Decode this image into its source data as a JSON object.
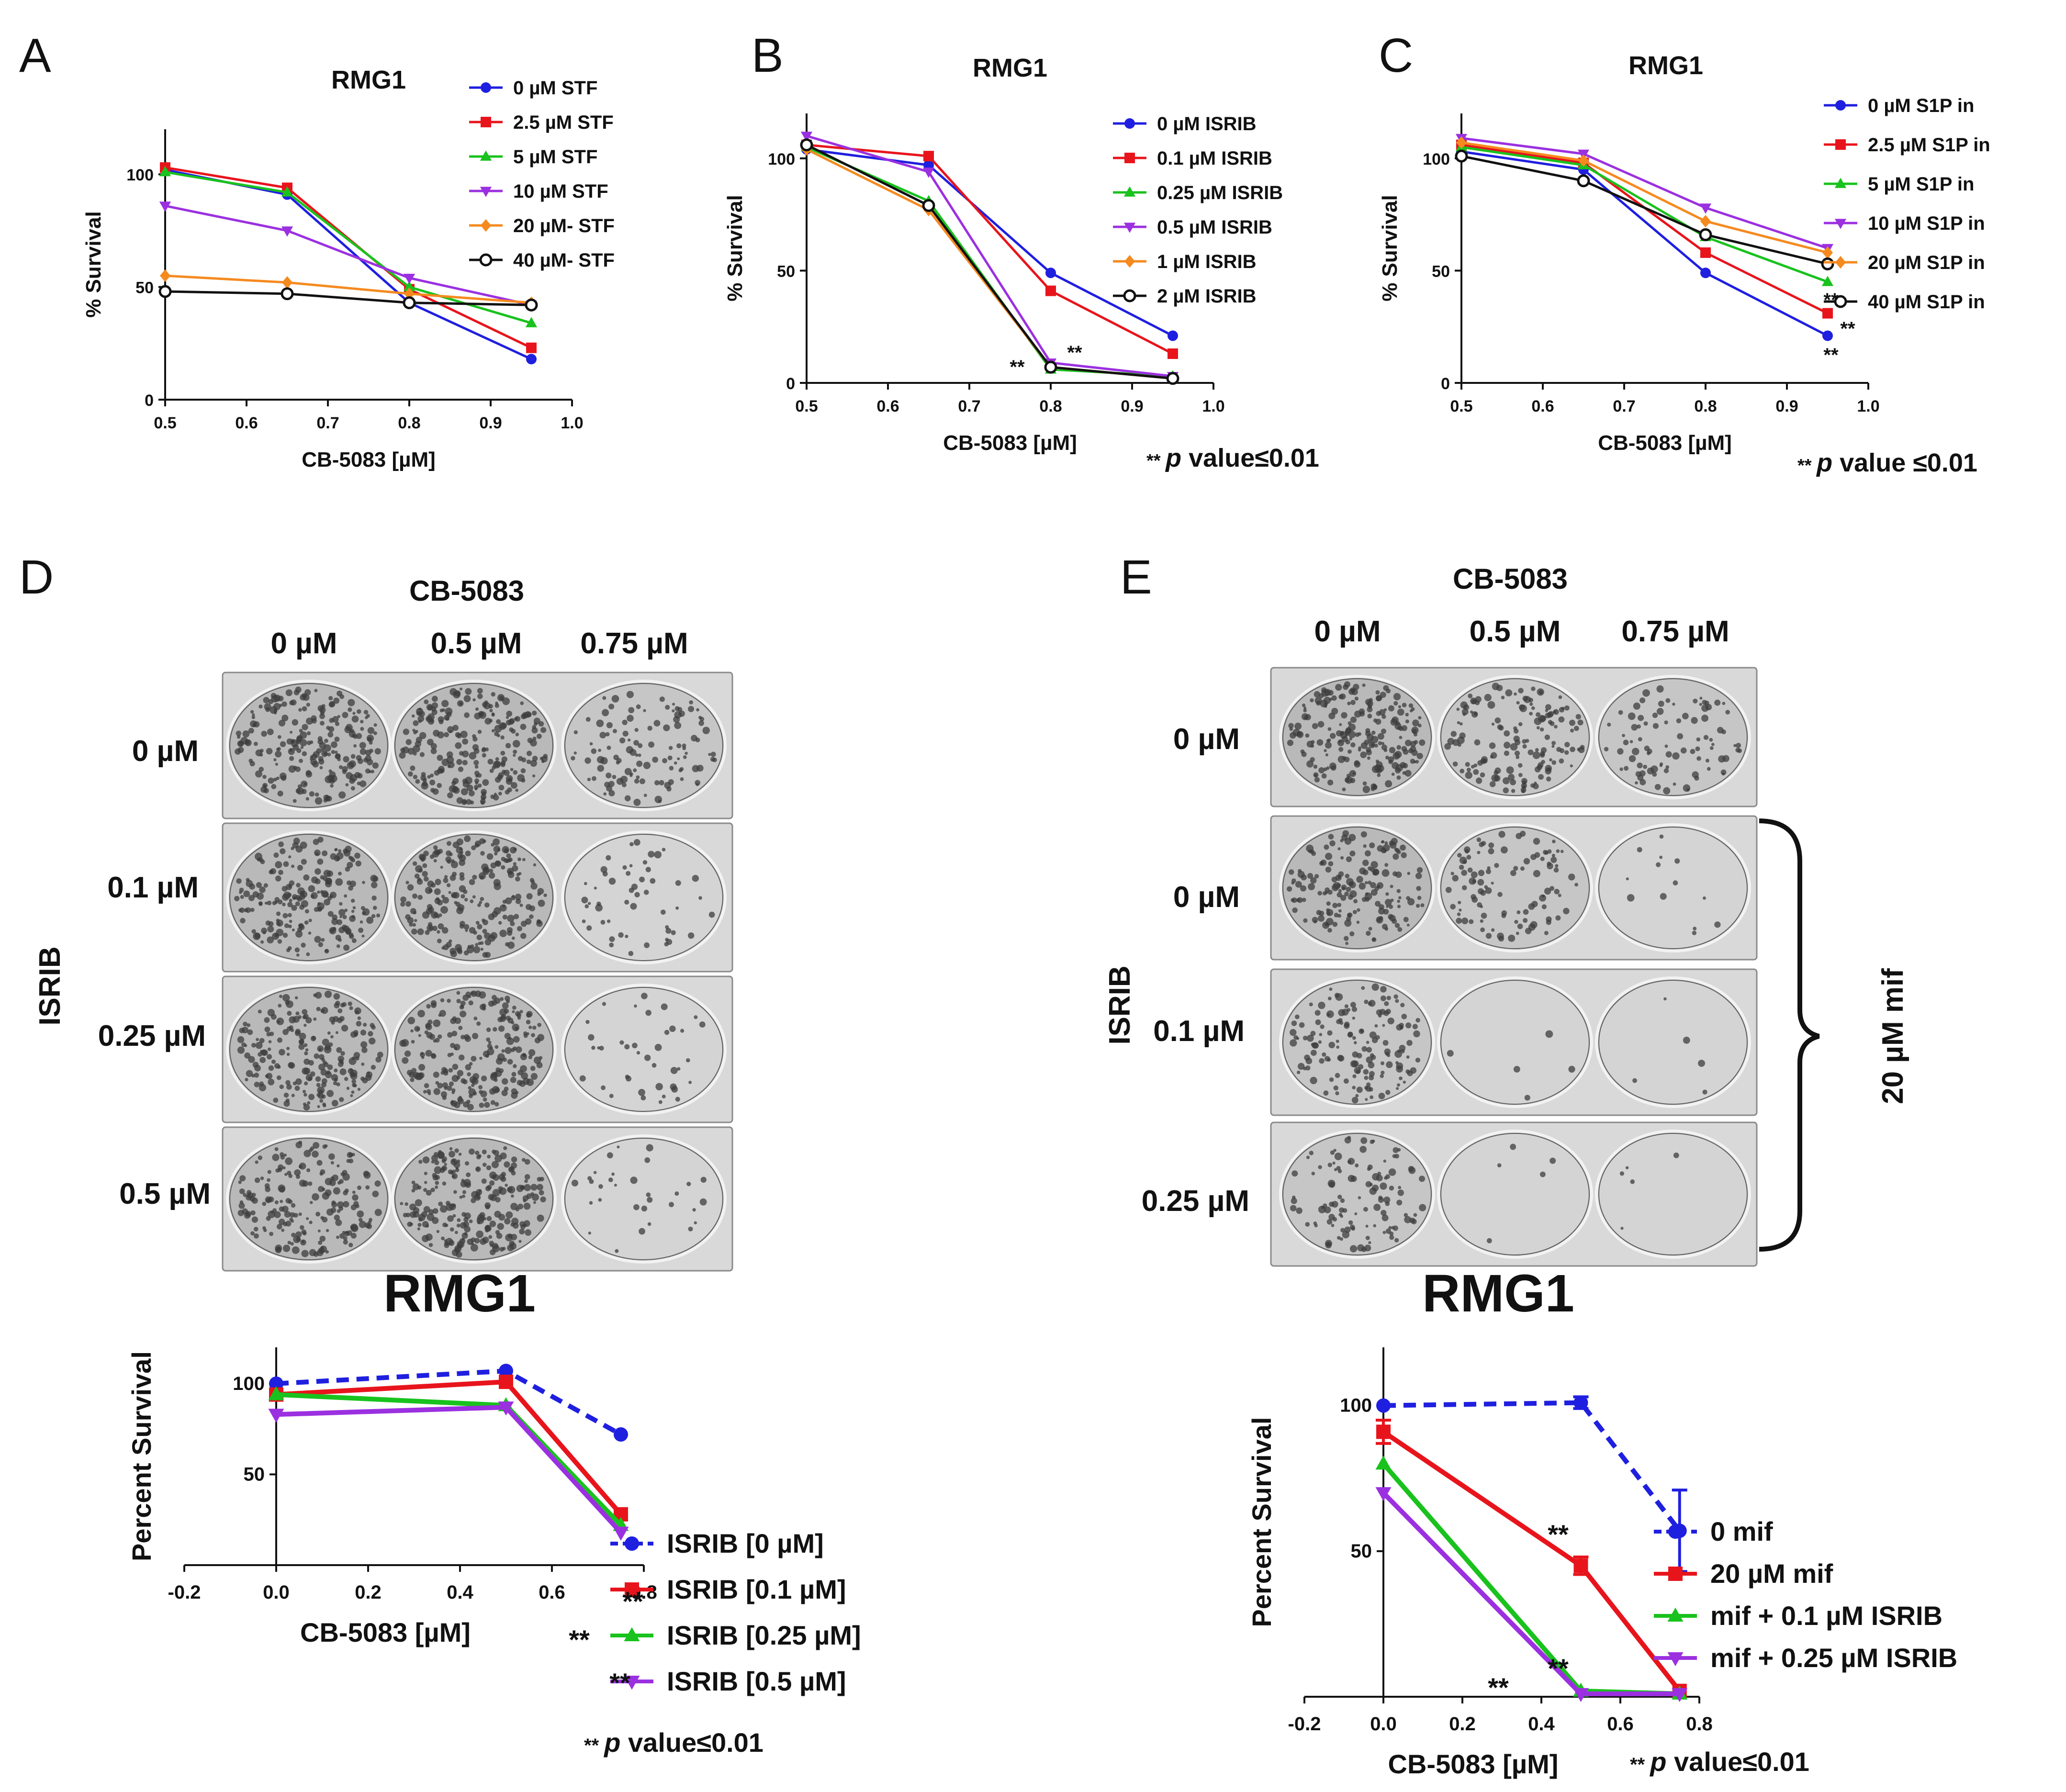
{
  "chart_data": [
    {
      "panel": "A",
      "type": "line",
      "title": "RMG1",
      "xlabel": "CB-5083 [µM]",
      "ylabel": "% Survival",
      "xlim": [
        0.5,
        1.0
      ],
      "ylim": [
        0,
        120
      ],
      "xticks": [
        0.5,
        0.6,
        0.7,
        0.8,
        0.9,
        1.0
      ],
      "xtick_labels": [
        "0.5",
        "0.6",
        "0.7",
        "0.8",
        "0.9",
        "1.0"
      ],
      "yticks": [
        0,
        50,
        100
      ],
      "ytick_labels": [
        "0",
        "50",
        "100"
      ],
      "legend_position": "right",
      "x": [
        0.5,
        0.65,
        0.8,
        0.95
      ],
      "series": [
        {
          "name": "0 µM STF",
          "color": "#1f1fe0",
          "marker": "circle",
          "values": [
            102,
            91,
            43,
            18
          ]
        },
        {
          "name": "2.5 µM STF",
          "color": "#e8141c",
          "marker": "square",
          "values": [
            103,
            94,
            49,
            23
          ]
        },
        {
          "name": "5 µM STF",
          "color": "#19c21d",
          "marker": "triangle",
          "values": [
            101,
            92,
            50,
            34
          ]
        },
        {
          "name": "10 µM STF",
          "color": "#9b30e0",
          "marker": "triangle-down",
          "values": [
            86,
            75,
            54,
            42
          ]
        },
        {
          "name": "20 µM- STF",
          "color": "#f58a1f",
          "marker": "diamond",
          "values": [
            55,
            52,
            47,
            43
          ]
        },
        {
          "name": "40 µM- STF",
          "color": "#111111",
          "marker": "open-circle",
          "values": [
            48,
            47,
            43,
            42
          ]
        }
      ]
    },
    {
      "panel": "B",
      "type": "line",
      "title": "RMG1",
      "xlabel": "CB-5083 [µM]",
      "ylabel": "% Survival",
      "xlim": [
        0.5,
        1.0
      ],
      "ylim": [
        0,
        120
      ],
      "xticks": [
        0.5,
        0.6,
        0.7,
        0.8,
        0.9,
        1.0
      ],
      "xtick_labels": [
        "0.5",
        "0.6",
        "0.7",
        "0.8",
        "0.9",
        "1.0"
      ],
      "yticks": [
        0,
        50,
        100
      ],
      "ytick_labels": [
        "0",
        "50",
        "100"
      ],
      "legend_position": "right",
      "annotation": "** p value≤0.01",
      "annotation_p": "p",
      "annotation_rest": " value≤0.01",
      "stars": [
        "**",
        "**"
      ],
      "x": [
        0.5,
        0.65,
        0.8,
        0.95
      ],
      "series": [
        {
          "name": "0 µM ISRIB",
          "color": "#1f1fe0",
          "marker": "circle",
          "values": [
            104,
            97,
            49,
            21
          ]
        },
        {
          "name": "0.1 µM ISRIB",
          "color": "#e8141c",
          "marker": "square",
          "values": [
            106,
            101,
            41,
            13
          ]
        },
        {
          "name": "0.25 µM ISRIB",
          "color": "#19c21d",
          "marker": "triangle",
          "values": [
            105,
            81,
            6,
            3
          ]
        },
        {
          "name": "0.5 µM ISRIB",
          "color": "#9b30e0",
          "marker": "triangle-down",
          "values": [
            110,
            94,
            9,
            3
          ]
        },
        {
          "name": "1 µM ISRIB",
          "color": "#f58a1f",
          "marker": "diamond",
          "values": [
            104,
            77,
            7,
            2
          ]
        },
        {
          "name": "2 µM ISRIB",
          "color": "#111111",
          "marker": "open-circle",
          "values": [
            106,
            79,
            7,
            2
          ]
        }
      ]
    },
    {
      "panel": "C",
      "type": "line",
      "title": "RMG1",
      "xlabel": "CB-5083 [µM]",
      "ylabel": "% Survival",
      "xlim": [
        0.5,
        1.0
      ],
      "ylim": [
        0,
        120
      ],
      "xticks": [
        0.5,
        0.6,
        0.7,
        0.8,
        0.9,
        1.0
      ],
      "xtick_labels": [
        "0.5",
        "0.6",
        "0.7",
        "0.8",
        "0.9",
        "1.0"
      ],
      "yticks": [
        0,
        50,
        100
      ],
      "ytick_labels": [
        "0",
        "50",
        "100"
      ],
      "legend_position": "right",
      "annotation": "** p value ≤0.01",
      "annotation_p": "p",
      "annotation_rest": " value ≤0.01",
      "stars": [
        "**",
        "**",
        "**"
      ],
      "x": [
        0.5,
        0.65,
        0.8,
        0.95
      ],
      "series": [
        {
          "name": "0 µM S1P in",
          "color": "#1f1fe0",
          "marker": "circle",
          "values": [
            103,
            95,
            49,
            21
          ]
        },
        {
          "name": "2.5 µM S1P in",
          "color": "#e8141c",
          "marker": "square",
          "values": [
            106,
            98,
            58,
            31
          ]
        },
        {
          "name": "5 µM S1P in",
          "color": "#19c21d",
          "marker": "triangle",
          "values": [
            105,
            97,
            65,
            45
          ]
        },
        {
          "name": "10 µM S1P in",
          "color": "#9b30e0",
          "marker": "triangle-down",
          "values": [
            109,
            102,
            78,
            60
          ]
        },
        {
          "name": "20 µM S1P in",
          "color": "#f58a1f",
          "marker": "diamond",
          "values": [
            107,
            99,
            72,
            58
          ]
        },
        {
          "name": "40 µM S1P in",
          "color": "#111111",
          "marker": "open-circle",
          "values": [
            101,
            90,
            66,
            53
          ]
        }
      ]
    },
    {
      "panel": "D",
      "type": "line",
      "title": "RMG1",
      "xlabel": "CB-5083 [µM]",
      "ylabel": "Percent Survival",
      "xlim": [
        -0.2,
        0.8
      ],
      "ylim": [
        0,
        120
      ],
      "xticks": [
        -0.2,
        0.0,
        0.2,
        0.4,
        0.6,
        0.8
      ],
      "xtick_labels": [
        "-0.2",
        "0.0",
        "0.2",
        "0.4",
        "0.6",
        "0.8"
      ],
      "yticks": [
        50,
        100
      ],
      "ytick_labels": [
        "50",
        "100"
      ],
      "legend_position": "right",
      "annotation": "** p value≤0.01",
      "annotation_p": "p",
      "annotation_rest": " value≤0.01",
      "stars": [
        "**",
        "**",
        "**"
      ],
      "x": [
        0,
        0.5,
        0.75
      ],
      "series": [
        {
          "name": "ISRIB [0 µM]",
          "color": "#1f1fe0",
          "marker": "circle",
          "dashed": true,
          "values": [
            100,
            107,
            72
          ]
        },
        {
          "name": "ISRIB [0.1 µM]",
          "color": "#e8141c",
          "marker": "square",
          "values": [
            94,
            101,
            28
          ]
        },
        {
          "name": "ISRIB [0.25 µM]",
          "color": "#19c21d",
          "marker": "triangle",
          "values": [
            94,
            88,
            22
          ]
        },
        {
          "name": "ISRIB [0.5 µM]",
          "color": "#9b30e0",
          "marker": "triangle-down",
          "values": [
            83,
            87,
            18
          ]
        }
      ]
    },
    {
      "panel": "E",
      "type": "line",
      "title": "RMG1",
      "xlabel": "CB-5083 [µM]",
      "ylabel": "Percent Survival",
      "xlim": [
        -0.2,
        0.8
      ],
      "ylim": [
        0,
        120
      ],
      "xticks": [
        -0.2,
        0.0,
        0.2,
        0.4,
        0.6,
        0.8
      ],
      "xtick_labels": [
        "-0.2",
        "0.0",
        "0.2",
        "0.4",
        "0.6",
        "0.8"
      ],
      "yticks": [
        50,
        100
      ],
      "ytick_labels": [
        "50",
        "100"
      ],
      "legend_position": "right",
      "annotation": "** p value≤0.01",
      "annotation_p": "p",
      "annotation_rest": " value≤0.01",
      "stars": [
        "**",
        "**",
        "**"
      ],
      "x": [
        0,
        0.5,
        0.75
      ],
      "series": [
        {
          "name": "0 mif",
          "color": "#1f1fe0",
          "marker": "circle",
          "dashed": true,
          "values": [
            100,
            101,
            57
          ],
          "errors": [
            0,
            2,
            14
          ]
        },
        {
          "name": "20 µM mif",
          "color": "#e8141c",
          "marker": "square",
          "values": [
            91,
            45,
            2
          ],
          "errors": [
            4,
            3,
            0
          ]
        },
        {
          "name": "mif + 0.1 µM ISRIB",
          "color": "#19c21d",
          "marker": "triangle",
          "values": [
            80,
            2,
            1
          ]
        },
        {
          "name": "mif + 0.25 µM ISRIB",
          "color": "#9b30e0",
          "marker": "triangle-down",
          "values": [
            70,
            1,
            1
          ]
        }
      ]
    }
  ],
  "panel_labels": [
    "A",
    "B",
    "C",
    "D",
    "E"
  ],
  "colony_assay_D": {
    "drug_label": "CB-5083",
    "column_labels": [
      "0 µM",
      "0.5 µM",
      "0.75 µM"
    ],
    "row_axis_label": "ISRIB",
    "row_labels": [
      "0 µM",
      "0.1 µM",
      "0.25 µM",
      "0.5 µM"
    ]
  },
  "colony_assay_E": {
    "drug_label": "CB-5083",
    "column_labels": [
      "0 µM",
      "0.5 µM",
      "0.75 µM"
    ],
    "row_axis_label": "ISRIB",
    "row_labels": [
      "0 µM",
      "0 µM",
      "0.1 µM",
      "0.25 µM"
    ],
    "bracket_label": "20 µM mif"
  }
}
